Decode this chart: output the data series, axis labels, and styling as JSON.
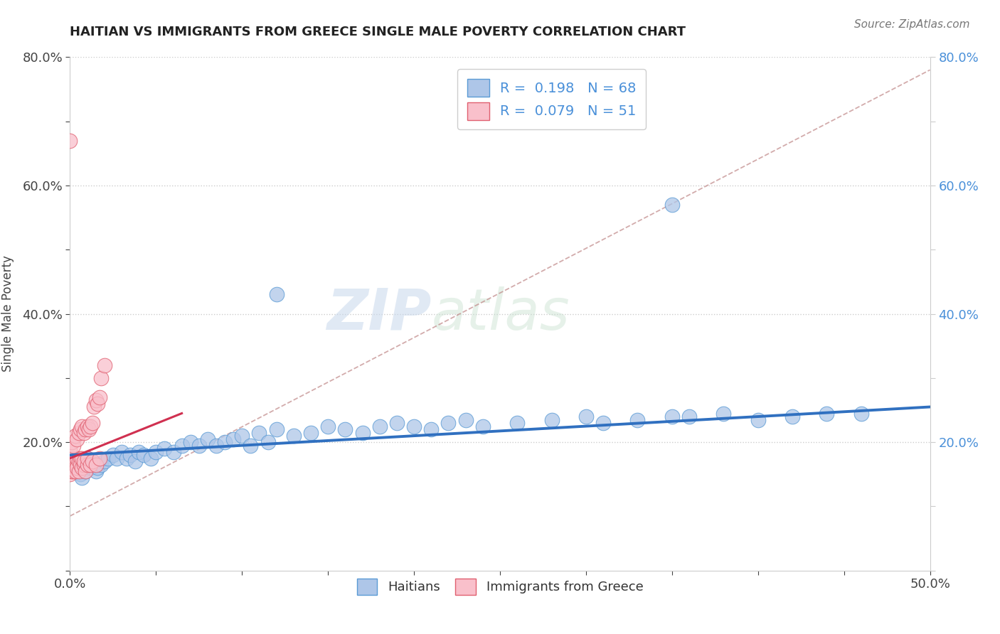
{
  "title": "HAITIAN VS IMMIGRANTS FROM GREECE SINGLE MALE POVERTY CORRELATION CHART",
  "source": "Source: ZipAtlas.com",
  "ylabel": "Single Male Poverty",
  "xlim": [
    0,
    0.5
  ],
  "ylim": [
    0,
    0.8
  ],
  "haitians_R": 0.198,
  "haitians_N": 68,
  "greece_R": 0.079,
  "greece_N": 51,
  "color_haitians_fill": "#aec6e8",
  "color_haitians_edge": "#5b9bd5",
  "color_greece_fill": "#f9c0cb",
  "color_greece_edge": "#e06070",
  "color_haitians_line": "#3070c0",
  "color_greece_line": "#d03050",
  "color_ref_line": "#d08090",
  "legend_label_haitians": "Haitians",
  "legend_label_greece": "Immigrants from Greece",
  "watermark_zip": "ZIP",
  "watermark_atlas": "atlas",
  "haitians_x": [
    0.001,
    0.002,
    0.003,
    0.004,
    0.005,
    0.006,
    0.007,
    0.008,
    0.009,
    0.01,
    0.011,
    0.012,
    0.013,
    0.015,
    0.016,
    0.018,
    0.02,
    0.022,
    0.025,
    0.027,
    0.03,
    0.033,
    0.035,
    0.038,
    0.04,
    0.043,
    0.047,
    0.05,
    0.055,
    0.06,
    0.065,
    0.07,
    0.075,
    0.08,
    0.085,
    0.09,
    0.095,
    0.1,
    0.105,
    0.11,
    0.115,
    0.12,
    0.13,
    0.14,
    0.15,
    0.16,
    0.17,
    0.18,
    0.19,
    0.2,
    0.21,
    0.22,
    0.23,
    0.24,
    0.26,
    0.28,
    0.3,
    0.31,
    0.33,
    0.35,
    0.36,
    0.38,
    0.4,
    0.42,
    0.44,
    0.46,
    0.35,
    0.12
  ],
  "haitians_y": [
    0.175,
    0.16,
    0.155,
    0.165,
    0.17,
    0.15,
    0.145,
    0.16,
    0.155,
    0.175,
    0.165,
    0.16,
    0.17,
    0.155,
    0.16,
    0.165,
    0.17,
    0.175,
    0.18,
    0.175,
    0.185,
    0.175,
    0.18,
    0.17,
    0.185,
    0.18,
    0.175,
    0.185,
    0.19,
    0.185,
    0.195,
    0.2,
    0.195,
    0.205,
    0.195,
    0.2,
    0.205,
    0.21,
    0.195,
    0.215,
    0.2,
    0.22,
    0.21,
    0.215,
    0.225,
    0.22,
    0.215,
    0.225,
    0.23,
    0.225,
    0.22,
    0.23,
    0.235,
    0.225,
    0.23,
    0.235,
    0.24,
    0.23,
    0.235,
    0.24,
    0.24,
    0.245,
    0.235,
    0.24,
    0.245,
    0.245,
    0.57,
    0.43
  ],
  "greece_x": [
    0.0,
    0.0,
    0.001,
    0.001,
    0.001,
    0.001,
    0.002,
    0.002,
    0.002,
    0.003,
    0.003,
    0.003,
    0.004,
    0.004,
    0.004,
    0.005,
    0.005,
    0.006,
    0.006,
    0.007,
    0.007,
    0.008,
    0.008,
    0.009,
    0.01,
    0.01,
    0.012,
    0.013,
    0.015,
    0.017,
    0.0,
    0.001,
    0.002,
    0.003,
    0.004,
    0.005,
    0.006,
    0.007,
    0.008,
    0.009,
    0.01,
    0.011,
    0.012,
    0.013,
    0.014,
    0.015,
    0.016,
    0.017,
    0.018,
    0.02,
    0.0
  ],
  "greece_y": [
    0.15,
    0.16,
    0.155,
    0.165,
    0.17,
    0.16,
    0.155,
    0.175,
    0.165,
    0.16,
    0.155,
    0.17,
    0.165,
    0.175,
    0.16,
    0.155,
    0.17,
    0.175,
    0.165,
    0.16,
    0.175,
    0.165,
    0.17,
    0.155,
    0.165,
    0.175,
    0.165,
    0.17,
    0.165,
    0.175,
    0.19,
    0.2,
    0.195,
    0.21,
    0.205,
    0.215,
    0.22,
    0.225,
    0.215,
    0.22,
    0.225,
    0.22,
    0.225,
    0.23,
    0.255,
    0.265,
    0.26,
    0.27,
    0.3,
    0.32,
    0.67
  ],
  "greece_ref_line_x": [
    0.0,
    0.07
  ],
  "greece_ref_line_y": [
    0.175,
    0.245
  ]
}
